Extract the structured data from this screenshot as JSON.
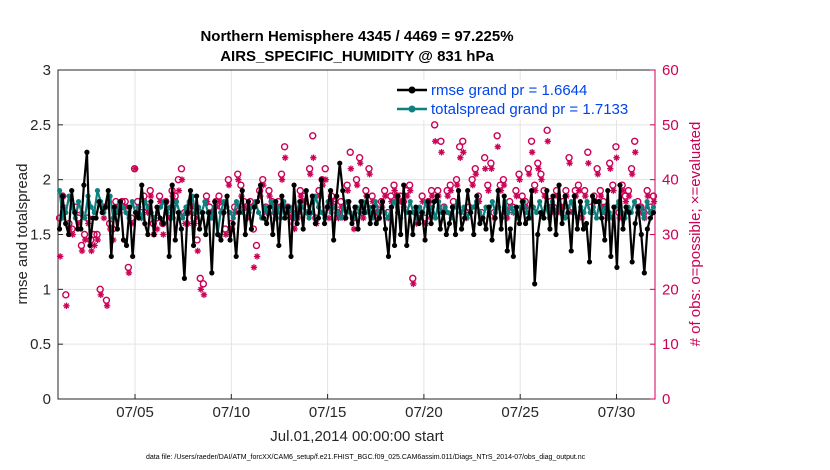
{
  "chart_data": {
    "type": "line",
    "title": "Northern Hemisphere 4345 / 4469 = 97.225%",
    "subtitle": "AIRS_SPECIFIC_HUMIDITY @ 831 hPa",
    "xlabel": "Jul.01,2014 00:00:00 start",
    "ylabel": "rmse and totalspread",
    "ylabel_right": "# of obs: o=possible; ×=evaluated",
    "ylim": [
      0,
      3
    ],
    "ylim_right": [
      0,
      60
    ],
    "xlim": [
      1,
      32
    ],
    "x_ticks": [
      5,
      10,
      15,
      20,
      25,
      30
    ],
    "x_tick_labels": [
      "07/05",
      "07/10",
      "07/15",
      "07/20",
      "07/25",
      "07/30"
    ],
    "y_ticks": [
      0,
      0.5,
      1,
      1.5,
      2,
      2.5,
      3
    ],
    "y_tick_labels": [
      "0",
      "0.5",
      "1",
      "1.5",
      "2",
      "2.5",
      "3"
    ],
    "y2_ticks": [
      0,
      10,
      20,
      30,
      40,
      50,
      60
    ],
    "y2_tick_labels": [
      "0",
      "10",
      "20",
      "30",
      "40",
      "50",
      "60"
    ],
    "grid": true,
    "legend_position": "top-right",
    "footer": "data file: /Users/raeder/DAI/ATM_forcXX/CAM6_setup/f.e21.FHIST_BGC.f09_025.CAM6assim.011/Diags_NTrS_2014-07/obs_diag_output.nc",
    "series": [
      {
        "name": "rmse grand pr = 1.6644",
        "color": "#000000",
        "axis": "left",
        "marker": "dot",
        "values": [
          1.55,
          1.85,
          1.6,
          1.5,
          1.9,
          1.7,
          1.55,
          1.55,
          1.95,
          2.25,
          1.4,
          1.65,
          1.65,
          1.8,
          1.7,
          1.75,
          1.9,
          1.3,
          1.75,
          1.55,
          1.8,
          1.45,
          1.4,
          1.75,
          1.3,
          1.7,
          1.65,
          1.95,
          1.6,
          1.5,
          1.8,
          1.5,
          1.75,
          1.65,
          1.6,
          1.8,
          1.3,
          1.95,
          1.45,
          1.7,
          1.55,
          1.1,
          1.7,
          1.9,
          1.4,
          1.85,
          1.55,
          1.7,
          1.5,
          1.7,
          1.15,
          1.8,
          1.5,
          1.45,
          1.7,
          1.85,
          1.45,
          1.6,
          1.3,
          1.7,
          1.9,
          1.5,
          1.8,
          1.55,
          1.75,
          1.8,
          1.95,
          1.65,
          1.6,
          1.75,
          1.5,
          1.8,
          1.4,
          1.85,
          1.65,
          1.75,
          1.3,
          1.95,
          1.6,
          1.8,
          1.55,
          1.9,
          1.7,
          1.85,
          1.6,
          1.65,
          2.0,
          1.6,
          1.75,
          1.9,
          1.45,
          1.85,
          2.15,
          1.9,
          1.65,
          1.8,
          1.6,
          1.75,
          1.55,
          1.8,
          1.7,
          1.85,
          1.6,
          1.75,
          1.6,
          1.65,
          1.8,
          1.55,
          1.3,
          1.75,
          1.4,
          1.85,
          1.5,
          1.95,
          1.4,
          1.7,
          1.5,
          1.75,
          1.6,
          1.7,
          1.45,
          1.8,
          1.6,
          1.8,
          1.85,
          1.55,
          1.7,
          1.5,
          1.6,
          1.75,
          1.5,
          1.9,
          1.55,
          1.65,
          1.9,
          1.7,
          1.5,
          1.85,
          1.6,
          1.65,
          1.55,
          1.75,
          1.45,
          1.65,
          1.9,
          1.55,
          1.85,
          1.35,
          1.55,
          1.3,
          1.75,
          1.6,
          1.8,
          1.6,
          1.65,
          1.9,
          1.05,
          1.5,
          1.7,
          1.65,
          1.9,
          1.55,
          1.85,
          1.5,
          1.95,
          1.6,
          1.85,
          1.7,
          1.35,
          1.85,
          1.55,
          1.8,
          1.55,
          1.6,
          1.25,
          1.85,
          1.8,
          1.8,
          1.65,
          1.45,
          1.9,
          1.3,
          1.75,
          1.2,
          1.95,
          1.55,
          1.75,
          1.7,
          1.25,
          1.6,
          1.75,
          1.5,
          1.15,
          1.55,
          1.65,
          1.7
        ]
      },
      {
        "name": "totalspread grand pr = 1.7133",
        "color": "#0f8080",
        "axis": "left",
        "marker": "dot",
        "values": [
          1.9,
          1.65,
          1.7,
          1.85,
          1.75,
          1.65,
          1.8,
          1.7,
          1.65,
          1.85,
          1.75,
          1.7,
          1.9,
          1.8,
          1.7,
          1.75,
          1.85,
          1.65,
          1.7,
          1.8,
          1.75,
          1.7,
          1.65,
          1.8,
          1.7,
          1.75,
          1.65,
          1.8,
          1.75,
          1.7,
          1.65,
          1.7,
          1.75,
          1.8,
          1.7,
          1.75,
          1.65,
          1.8,
          1.7,
          1.65,
          1.75,
          1.8,
          1.85,
          1.7,
          1.75,
          1.7,
          1.8,
          1.7,
          1.65,
          1.75,
          1.5,
          1.7,
          1.8,
          1.75,
          1.7,
          1.65,
          1.8,
          1.75,
          1.7,
          1.65,
          1.7,
          1.75,
          1.8,
          1.7,
          1.65,
          1.75,
          1.7,
          1.8,
          1.7,
          1.75,
          1.65,
          1.8,
          1.7,
          1.75,
          1.65,
          1.7,
          1.8,
          1.75,
          1.7,
          1.65,
          1.7,
          1.85,
          1.75,
          1.7,
          1.65,
          1.8,
          1.7,
          1.75,
          1.7,
          1.65,
          1.75,
          1.8,
          1.7,
          1.65,
          1.75,
          1.7,
          1.8,
          1.7,
          1.75,
          1.65,
          1.8,
          1.7,
          1.75,
          1.7,
          1.65,
          1.75,
          1.8,
          1.7,
          1.65,
          1.75,
          1.7,
          1.8,
          1.7,
          1.65,
          1.75,
          1.7,
          1.8,
          1.7,
          1.75,
          1.65,
          1.8,
          1.7,
          1.75,
          1.7,
          1.65,
          1.75,
          1.8,
          1.7,
          1.75,
          1.65,
          1.7,
          1.75,
          1.8,
          1.7,
          1.65,
          1.75,
          1.7,
          1.8,
          1.7,
          1.75,
          1.65,
          1.8,
          1.7,
          1.75,
          1.7,
          1.65,
          1.75,
          1.8,
          1.7,
          1.65,
          1.75,
          1.7,
          1.8,
          1.7,
          1.75,
          1.65,
          1.8,
          1.7,
          1.75,
          1.7,
          1.65,
          1.75,
          1.8,
          1.7,
          1.65,
          1.75,
          1.7,
          1.8,
          1.7,
          1.75,
          1.65,
          1.8,
          1.7,
          1.75,
          1.7,
          1.65,
          1.75,
          1.8,
          1.7,
          1.65,
          1.75,
          1.7,
          1.8,
          1.7,
          1.75,
          1.65,
          1.8,
          1.7,
          1.75
        ]
      },
      {
        "name": "possible obs",
        "color": "#cc0055",
        "axis": "right",
        "marker": "circle",
        "values": [
          33,
          37,
          19,
          32,
          31,
          35,
          33,
          28,
          30,
          33,
          29,
          30,
          30,
          20,
          35,
          18,
          32,
          31,
          36,
          35,
          36,
          36,
          24,
          33,
          42,
          36,
          34,
          37,
          35,
          38,
          32,
          33,
          37,
          32,
          36,
          34,
          38,
          37,
          40,
          42,
          34,
          34,
          36,
          33,
          29,
          22,
          21,
          37,
          35,
          34,
          36,
          37,
          35,
          31,
          40,
          32,
          35,
          41,
          39,
          36,
          34,
          36,
          31,
          28,
          38,
          40,
          35,
          38,
          36,
          34,
          36,
          41,
          46,
          35,
          34,
          32,
          34,
          38,
          37,
          35,
          42,
          48,
          33,
          38,
          40,
          42,
          35,
          37,
          36,
          34,
          36,
          34,
          39,
          45,
          33,
          40,
          44,
          34,
          38,
          42,
          37,
          35,
          34,
          36,
          38,
          34,
          37,
          39,
          37,
          37,
          36,
          38,
          39,
          22,
          34,
          34,
          37,
          33,
          36,
          38,
          50,
          38,
          47,
          35,
          38,
          39,
          36,
          40,
          46,
          47,
          34,
          35,
          40,
          42,
          37,
          34,
          44,
          39,
          43,
          34,
          48,
          39,
          40,
          34,
          36,
          35,
          38,
          41,
          37,
          36,
          42,
          47,
          39,
          43,
          41,
          38,
          49,
          36,
          35,
          38,
          35,
          36,
          38,
          44,
          35,
          38,
          39,
          34,
          38,
          45,
          35,
          37,
          42,
          38,
          36,
          34,
          43,
          39,
          46,
          34,
          39,
          37,
          38,
          42,
          47,
          36,
          35,
          34,
          38,
          35,
          37
        ]
      },
      {
        "name": "evaluated obs",
        "color": "#cc0055",
        "axis": "right",
        "marker": "asterisk",
        "values": [
          26,
          35,
          17,
          31,
          30,
          34,
          32,
          27,
          29,
          32,
          27,
          28,
          29,
          19,
          33,
          17,
          31,
          29,
          35,
          34,
          35,
          35,
          23,
          32,
          42,
          35,
          33,
          36,
          34,
          37,
          30,
          31,
          36,
          30,
          34,
          33,
          37,
          36,
          38,
          40,
          32,
          32,
          35,
          32,
          27,
          20,
          19,
          36,
          34,
          33,
          35,
          36,
          34,
          30,
          39,
          31,
          34,
          40,
          37,
          35,
          33,
          35,
          24,
          26,
          37,
          39,
          34,
          37,
          35,
          33,
          35,
          40,
          44,
          34,
          33,
          31,
          33,
          37,
          36,
          34,
          41,
          44,
          32,
          37,
          39,
          40,
          33,
          36,
          35,
          33,
          35,
          33,
          38,
          42,
          31,
          39,
          43,
          33,
          37,
          41,
          36,
          34,
          33,
          35,
          37,
          33,
          36,
          38,
          36,
          36,
          35,
          37,
          38,
          21,
          32,
          33,
          36,
          32,
          35,
          37,
          47,
          37,
          45,
          34,
          37,
          38,
          35,
          39,
          44,
          45,
          33,
          34,
          39,
          41,
          36,
          33,
          42,
          38,
          42,
          33,
          46,
          38,
          39,
          33,
          35,
          34,
          37,
          40,
          36,
          35,
          41,
          45,
          38,
          42,
          40,
          37,
          47,
          35,
          34,
          37,
          34,
          35,
          37,
          43,
          34,
          37,
          38,
          33,
          37,
          43,
          34,
          36,
          41,
          37,
          35,
          33,
          42,
          38,
          44,
          33,
          38,
          36,
          37,
          41,
          45,
          35,
          34,
          33,
          37,
          34,
          36
        ]
      }
    ]
  }
}
